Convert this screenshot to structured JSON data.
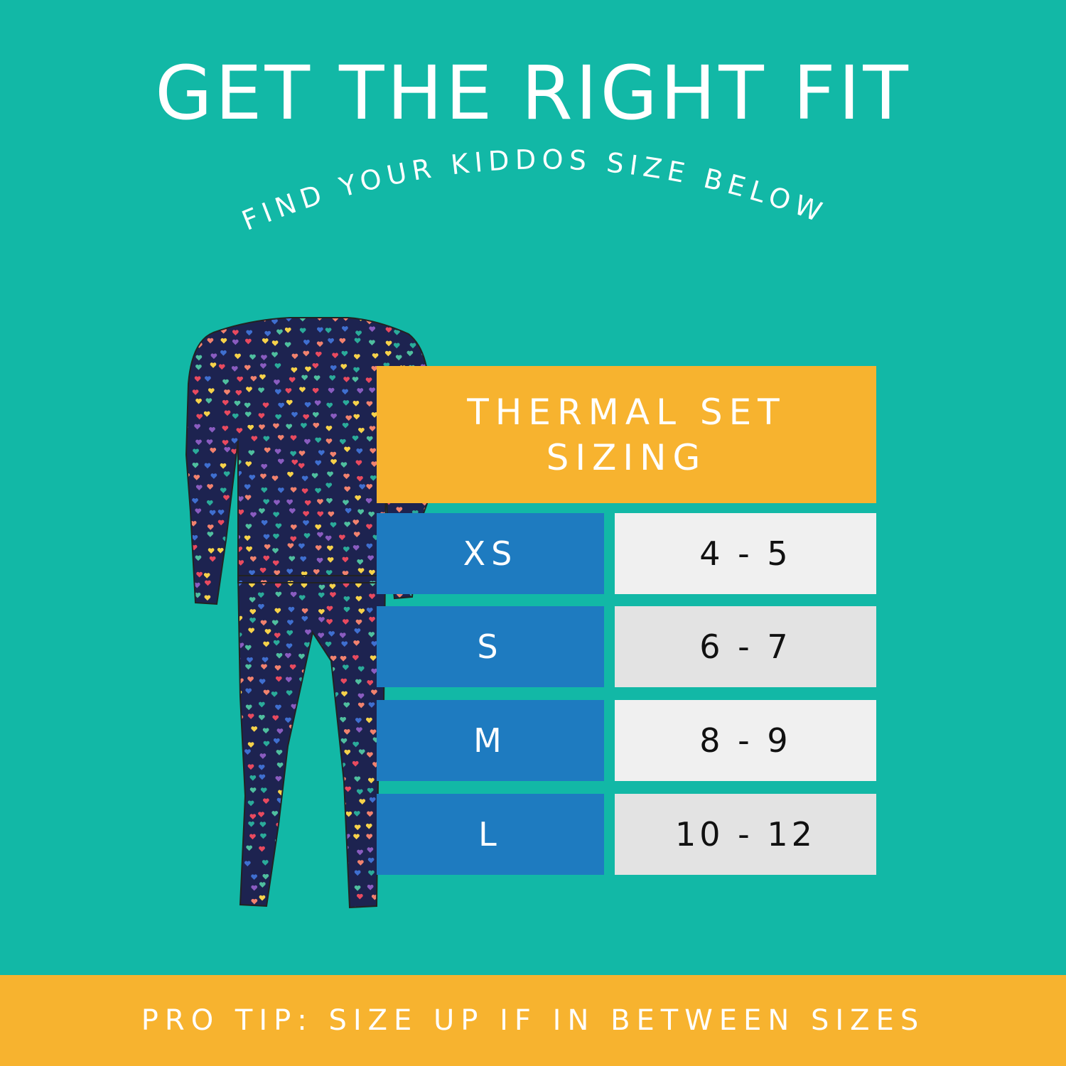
{
  "title": "GET THE RIGHT FIT",
  "subtitle": "FIND YOUR KIDDOS SIZE BELOW",
  "table": {
    "heading_line1": "THERMAL SET",
    "heading_line2": "SIZING",
    "rows": [
      {
        "size": "XS",
        "age": "4 - 5"
      },
      {
        "size": "S",
        "age": "6 - 7"
      },
      {
        "size": "M",
        "age": "8 - 9"
      },
      {
        "size": "L",
        "age": "10 - 12"
      }
    ]
  },
  "footer": "PRO TIP: SIZE UP IF IN BETWEEN SIZES",
  "colors": {
    "background": "#12b8a6",
    "accent": "#f7b32f",
    "size_cell": "#1e7bc0",
    "garment": "#1d2350",
    "heart_colors": [
      "#e94a5f",
      "#f2826e",
      "#f7d24a",
      "#4fbf9f",
      "#2bab9a",
      "#8a5cc0",
      "#3f6fd0"
    ]
  },
  "image": {
    "garment_icon": "thermal-set-hearts-pattern"
  }
}
